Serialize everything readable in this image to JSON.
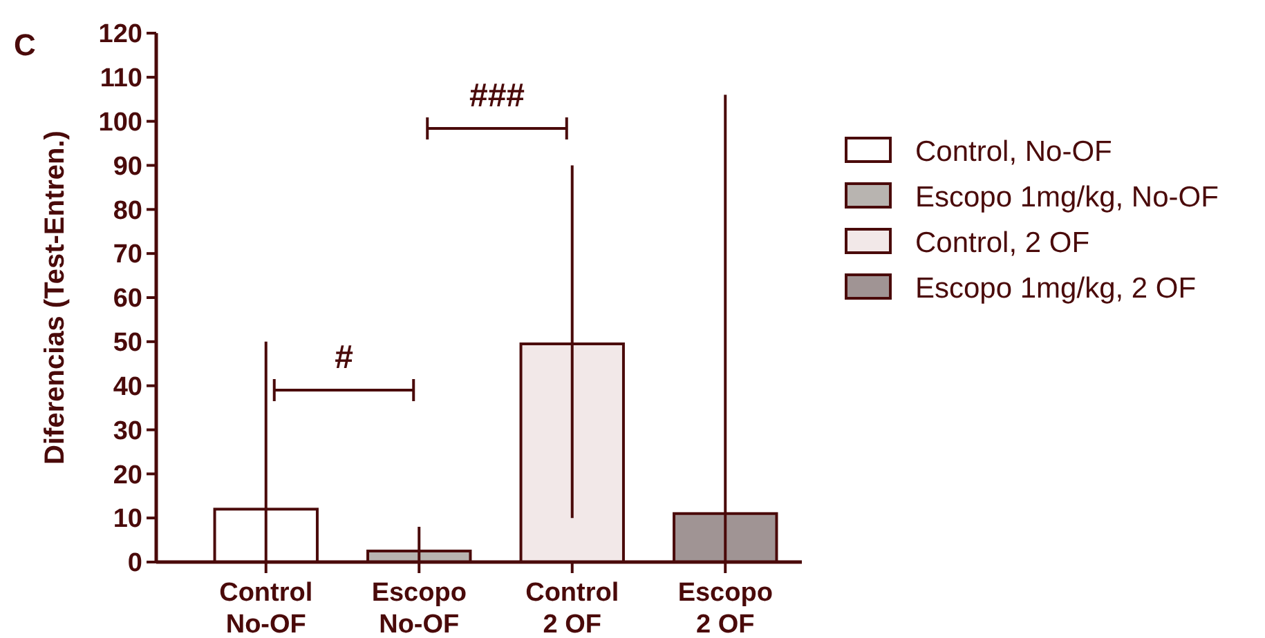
{
  "chart_data": {
    "type": "bar",
    "ylabel": "Diferencias (Test-Entren.)",
    "categories": [
      "Control\nNo-OF",
      "Escopo\nNo-OF",
      "Control\n2 OF",
      "Escopo\n2 OF"
    ],
    "series": [
      {
        "name": "Control, No-OF",
        "color": "#ffffff",
        "values": [
          12,
          null,
          null,
          null
        ],
        "errors": [
          [
            0,
            50
          ],
          null,
          null,
          null
        ]
      },
      {
        "name": "Escopo 1mg/kg, No-OF",
        "color": "#b8b4b0",
        "values": [
          null,
          2.5,
          null,
          null
        ],
        "errors": [
          null,
          [
            0,
            8
          ],
          null,
          null
        ]
      },
      {
        "name": "Control, 2 OF",
        "color": "#f2e8e8",
        "values": [
          null,
          null,
          49.5,
          null
        ],
        "errors": [
          null,
          null,
          [
            10,
            90
          ],
          null
        ]
      },
      {
        "name": "Escopo 1mg/kg, 2 OF",
        "color": "#a09494",
        "values": [
          null,
          null,
          null,
          11
        ],
        "errors": [
          null,
          null,
          null,
          [
            0,
            106
          ]
        ]
      }
    ],
    "ylim": [
      0,
      120
    ],
    "yticks": [
      0,
      10,
      20,
      30,
      40,
      50,
      60,
      70,
      80,
      90,
      100,
      110,
      120
    ],
    "legend": "right",
    "grid": false,
    "annotations": [
      "C",
      "#",
      "###"
    ]
  }
}
